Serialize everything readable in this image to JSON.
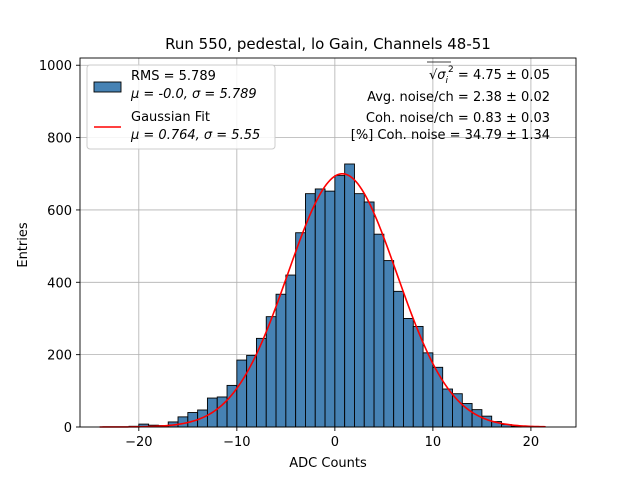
{
  "chart_data": {
    "type": "bar",
    "title": "Run 550, pedestal, lo Gain, Channels 48-51",
    "xlabel": "ADC Counts",
    "ylabel": "Entries",
    "xlim": [
      -26,
      24.6
    ],
    "ylim": [
      0,
      1020
    ],
    "grid": true,
    "x_ticks": [
      -20,
      -10,
      0,
      10,
      20
    ],
    "x_tick_labels": [
      "−20",
      "−10",
      "0",
      "10",
      "20"
    ],
    "y_ticks": [
      0,
      200,
      400,
      600,
      800,
      1000
    ],
    "y_tick_labels": [
      "0",
      "200",
      "400",
      "600",
      "800",
      "1000"
    ],
    "bin_width": 1,
    "bin_left_edges": [
      -21,
      -20,
      -19,
      -18,
      -17,
      -16,
      -15,
      -14,
      -13,
      -12,
      -11,
      -10,
      -9,
      -8,
      -7,
      -6,
      -5,
      -4,
      -3,
      -2,
      -1,
      0,
      1,
      2,
      3,
      4,
      5,
      6,
      7,
      8,
      9,
      10,
      11,
      12,
      13,
      14,
      15,
      16,
      17,
      18
    ],
    "counts": [
      2,
      8,
      5,
      4,
      14,
      28,
      40,
      47,
      80,
      83,
      115,
      185,
      198,
      245,
      305,
      367,
      420,
      537,
      645,
      658,
      652,
      695,
      727,
      645,
      622,
      533,
      460,
      375,
      300,
      278,
      205,
      165,
      105,
      92,
      65,
      48,
      30,
      15,
      7,
      2
    ],
    "legend": {
      "placement": "top-left",
      "entries": [
        {
          "label_line1": "RMS = 5.789",
          "label_line2": "μ = -0.0, σ = 5.789",
          "style": "bar",
          "color": "#4682b4"
        },
        {
          "label_line1": "Gaussian Fit",
          "label_line2": "μ = 0.764, σ = 5.55",
          "style": "line",
          "color": "#ff0000"
        }
      ]
    },
    "fit": {
      "name": "Gaussian Fit",
      "mu": 0.764,
      "sigma": 5.55,
      "amplitude": 700,
      "x_range": [
        -24,
        21.5
      ],
      "color": "#ff0000"
    },
    "bar_color": "#4682b4",
    "annotations": [
      {
        "prefix": "√",
        "sigma_symbol": "σ",
        "sub": "i",
        "sup": "2",
        "text": " = 4.75 ± 0.05"
      },
      {
        "text": "Avg. noise/ch = 2.38 ± 0.02"
      },
      {
        "text": "Coh. noise/ch = 0.83 ± 0.03"
      },
      {
        "text": "[%] Coh. noise = 34.79 ± 1.34"
      }
    ]
  }
}
